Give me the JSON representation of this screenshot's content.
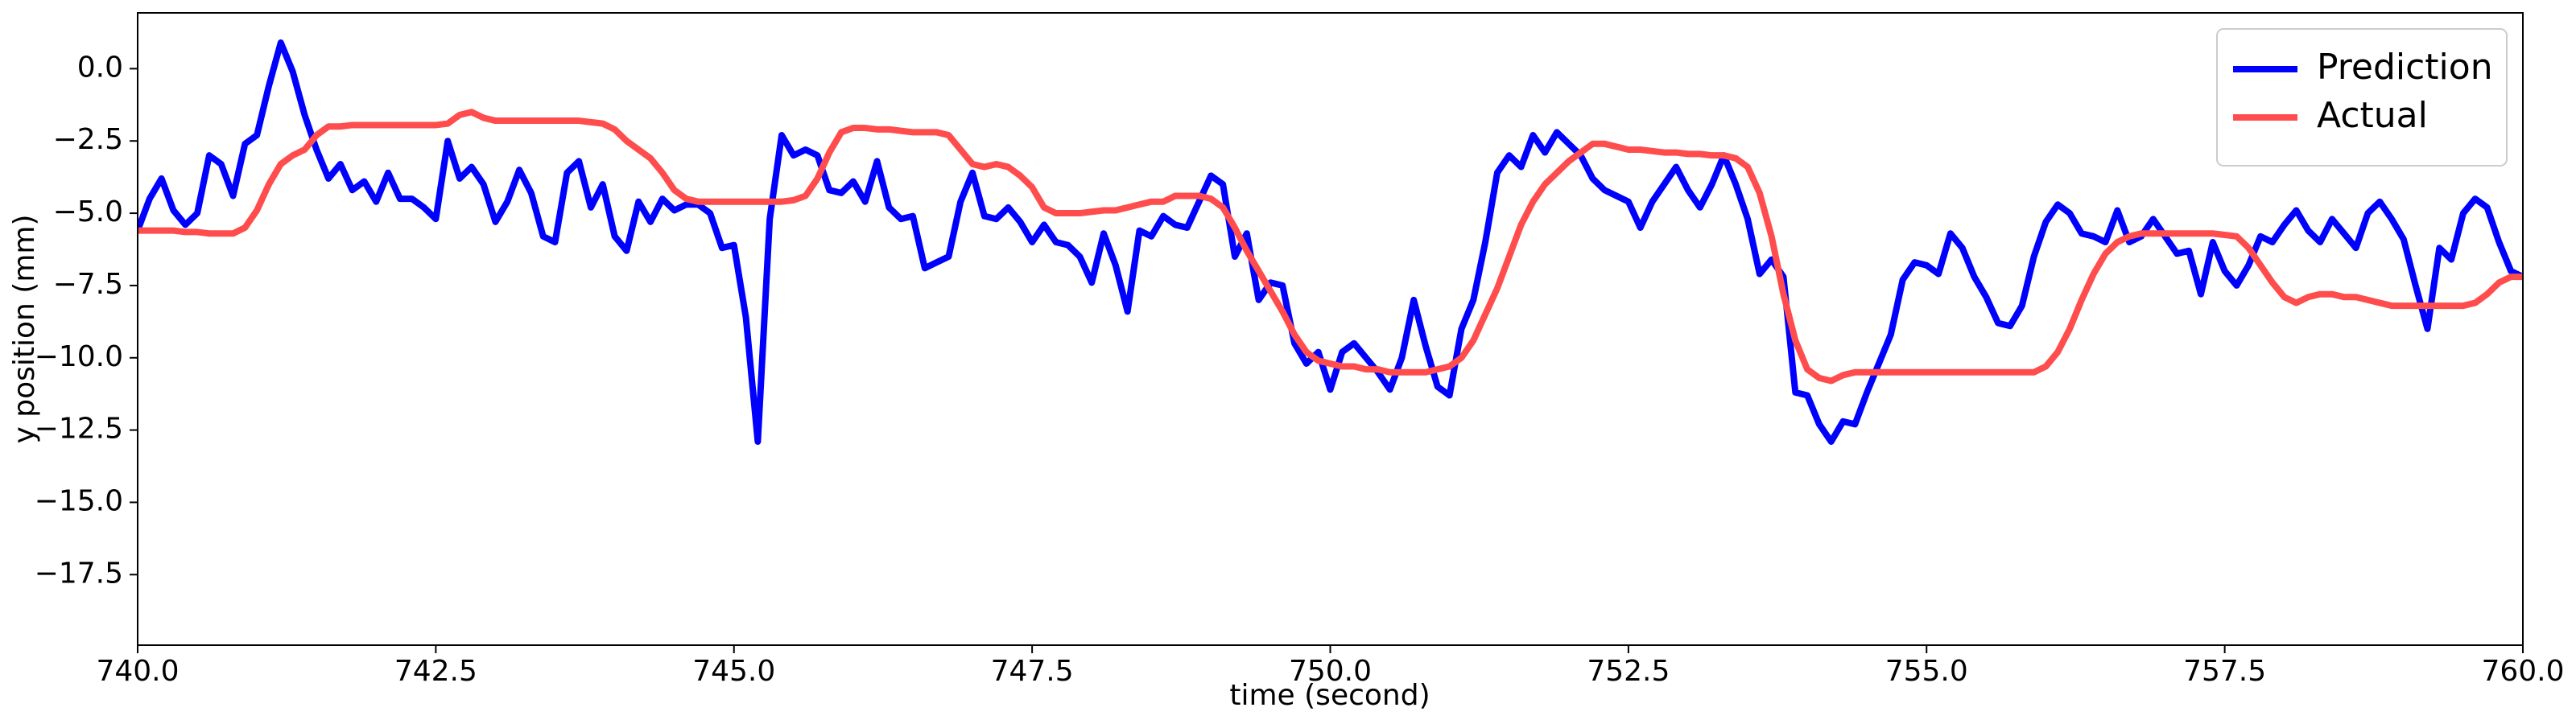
{
  "chart_data": {
    "type": "line",
    "xlabel": "time (second)",
    "ylabel": "y position (mm)",
    "xlim": [
      740,
      760
    ],
    "ylim": [
      -19.94,
      1.93
    ],
    "xticks": [
      {
        "value": 740,
        "label": "740.0"
      },
      742.5,
      {
        "value": 745,
        "label": "745.0"
      },
      747.5,
      {
        "value": 750,
        "label": "750.0"
      },
      752.5,
      {
        "value": 755,
        "label": "755.0"
      },
      757.5,
      {
        "value": 760,
        "label": "760.0"
      }
    ],
    "yticks": [
      {
        "value": 0,
        "label": "0.0"
      },
      {
        "value": -2.5,
        "label": "−2.5"
      },
      {
        "value": -5,
        "label": "−5.0"
      },
      {
        "value": -7.5,
        "label": "−7.5"
      },
      {
        "value": -10,
        "label": "−10.0"
      },
      {
        "value": -12.5,
        "label": "−12.5"
      },
      {
        "value": -15,
        "label": "−15.0"
      },
      {
        "value": -17.5,
        "label": "−17.5"
      }
    ],
    "legend": "upper right",
    "x": [
      740,
      740.1,
      740.2,
      740.3,
      740.4,
      740.5,
      740.6,
      740.7,
      740.8,
      740.9,
      741,
      741.1,
      741.2,
      741.3,
      741.4,
      741.5,
      741.6,
      741.7,
      741.8,
      741.9,
      742,
      742.1,
      742.2,
      742.3,
      742.4,
      742.5,
      742.6,
      742.7,
      742.8,
      742.9,
      743,
      743.1,
      743.2,
      743.3,
      743.4,
      743.5,
      743.6,
      743.7,
      743.8,
      743.9,
      744,
      744.1,
      744.2,
      744.3,
      744.4,
      744.5,
      744.6,
      744.7,
      744.8,
      744.9,
      745,
      745.1,
      745.2,
      745.3,
      745.4,
      745.5,
      745.6,
      745.7,
      745.8,
      745.9,
      746,
      746.1,
      746.2,
      746.3,
      746.4,
      746.5,
      746.6,
      746.7,
      746.8,
      746.9,
      747,
      747.1,
      747.2,
      747.3,
      747.4,
      747.5,
      747.6,
      747.7,
      747.8,
      747.9,
      748,
      748.1,
      748.2,
      748.3,
      748.4,
      748.5,
      748.6,
      748.7,
      748.8,
      748.9,
      749,
      749.1,
      749.2,
      749.3,
      749.4,
      749.5,
      749.6,
      749.7,
      749.8,
      749.9,
      750,
      750.1,
      750.2,
      750.3,
      750.4,
      750.5,
      750.6,
      750.7,
      750.8,
      750.9,
      751,
      751.1,
      751.2,
      751.3,
      751.4,
      751.5,
      751.6,
      751.7,
      751.8,
      751.9,
      752,
      752.1,
      752.2,
      752.3,
      752.4,
      752.5,
      752.6,
      752.7,
      752.8,
      752.9,
      753,
      753.1,
      753.2,
      753.3,
      753.4,
      753.5,
      753.6,
      753.7,
      753.8,
      753.9,
      754,
      754.1,
      754.2,
      754.3,
      754.4,
      754.5,
      754.6,
      754.7,
      754.8,
      754.9,
      755,
      755.1,
      755.2,
      755.3,
      755.4,
      755.5,
      755.6,
      755.7,
      755.8,
      755.9,
      756,
      756.1,
      756.2,
      756.3,
      756.4,
      756.5,
      756.6,
      756.7,
      756.8,
      756.9,
      757,
      757.1,
      757.2,
      757.3,
      757.4,
      757.5,
      757.6,
      757.7,
      757.8,
      757.9,
      758,
      758.1,
      758.2,
      758.3,
      758.4,
      758.5,
      758.6,
      758.7,
      758.8,
      758.9,
      759,
      759.1,
      759.2,
      759.3,
      759.4,
      759.5,
      759.6,
      759.7,
      759.8,
      759.9,
      760
    ],
    "series": [
      {
        "name": "Prediction",
        "color": "#0000ff",
        "values": [
          -5.6,
          -4.5,
          -3.8,
          -4.9,
          -5.4,
          -5.0,
          -3.0,
          -3.3,
          -4.4,
          -2.6,
          -2.3,
          -0.6,
          0.9,
          -0.1,
          -1.6,
          -2.8,
          -3.8,
          -3.3,
          -4.2,
          -3.9,
          -4.6,
          -3.6,
          -4.5,
          -4.5,
          -4.8,
          -5.2,
          -2.5,
          -3.8,
          -3.4,
          -4.0,
          -5.3,
          -4.6,
          -3.5,
          -4.3,
          -5.8,
          -6.0,
          -3.6,
          -3.2,
          -4.8,
          -4.0,
          -5.8,
          -6.3,
          -4.6,
          -5.3,
          -4.5,
          -4.9,
          -4.7,
          -4.7,
          -5.0,
          -6.2,
          -6.1,
          -8.6,
          -12.9,
          -5.2,
          -2.3,
          -3.0,
          -2.8,
          -3.0,
          -4.2,
          -4.3,
          -3.9,
          -4.6,
          -3.2,
          -4.8,
          -5.2,
          -5.1,
          -6.9,
          -6.7,
          -6.5,
          -4.6,
          -3.6,
          -5.1,
          -5.2,
          -4.8,
          -5.3,
          -6.0,
          -5.4,
          -6.0,
          -6.1,
          -6.5,
          -7.4,
          -5.7,
          -6.8,
          -8.4,
          -5.6,
          -5.8,
          -5.1,
          -5.4,
          -5.5,
          -4.6,
          -3.7,
          -4.0,
          -6.5,
          -5.7,
          -8.0,
          -7.4,
          -7.5,
          -9.5,
          -10.2,
          -9.8,
          -11.1,
          -9.8,
          -9.5,
          -10.0,
          -10.5,
          -11.1,
          -10.0,
          -8.0,
          -9.6,
          -11.0,
          -11.3,
          -9.0,
          -8.0,
          -6.0,
          -3.6,
          -3.0,
          -3.4,
          -2.3,
          -2.9,
          -2.2,
          -2.6,
          -3.0,
          -3.8,
          -4.2,
          -4.4,
          -4.6,
          -5.5,
          -4.6,
          -4.0,
          -3.4,
          -4.2,
          -4.8,
          -4.0,
          -3.0,
          -4.0,
          -5.2,
          -7.1,
          -6.6,
          -7.2,
          -11.2,
          -11.3,
          -12.3,
          -12.9,
          -12.2,
          -12.3,
          -11.2,
          -10.2,
          -9.2,
          -7.3,
          -6.7,
          -6.8,
          -7.1,
          -5.7,
          -6.2,
          -7.2,
          -7.9,
          -8.8,
          -8.9,
          -8.2,
          -6.5,
          -5.3,
          -4.7,
          -5.0,
          -5.7,
          -5.8,
          -6.0,
          -4.9,
          -6.0,
          -5.8,
          -5.2,
          -5.8,
          -6.4,
          -6.3,
          -7.8,
          -6.0,
          -7.0,
          -7.5,
          -6.8,
          -5.8,
          -6.0,
          -5.4,
          -4.9,
          -5.6,
          -6.0,
          -5.2,
          -5.7,
          -6.2,
          -5.0,
          -4.6,
          -5.2,
          -5.9,
          -7.5,
          -9.0,
          -6.2,
          -6.6,
          -5.0,
          -4.5,
          -4.8,
          -6.0,
          -7.0,
          -7.2
        ]
      },
      {
        "name": "Actual",
        "color": "#ff4d4d",
        "values": [
          -5.6,
          -5.6,
          -5.6,
          -5.6,
          -5.65,
          -5.65,
          -5.7,
          -5.7,
          -5.7,
          -5.5,
          -4.9,
          -4.0,
          -3.3,
          -3.0,
          -2.8,
          -2.3,
          -2.0,
          -2.0,
          -1.95,
          -1.95,
          -1.95,
          -1.95,
          -1.95,
          -1.95,
          -1.95,
          -1.95,
          -1.9,
          -1.6,
          -1.5,
          -1.7,
          -1.8,
          -1.8,
          -1.8,
          -1.8,
          -1.8,
          -1.8,
          -1.8,
          -1.8,
          -1.85,
          -1.9,
          -2.1,
          -2.5,
          -2.8,
          -3.1,
          -3.6,
          -4.2,
          -4.5,
          -4.6,
          -4.6,
          -4.6,
          -4.6,
          -4.6,
          -4.6,
          -4.6,
          -4.6,
          -4.55,
          -4.4,
          -3.8,
          -2.9,
          -2.2,
          -2.05,
          -2.05,
          -2.1,
          -2.1,
          -2.15,
          -2.2,
          -2.2,
          -2.2,
          -2.3,
          -2.8,
          -3.3,
          -3.4,
          -3.3,
          -3.4,
          -3.7,
          -4.1,
          -4.8,
          -5.0,
          -5.0,
          -5.0,
          -4.95,
          -4.9,
          -4.9,
          -4.8,
          -4.7,
          -4.6,
          -4.6,
          -4.4,
          -4.4,
          -4.4,
          -4.5,
          -4.8,
          -5.5,
          -6.3,
          -7.0,
          -7.7,
          -8.4,
          -9.2,
          -9.8,
          -10.1,
          -10.2,
          -10.3,
          -10.3,
          -10.4,
          -10.4,
          -10.5,
          -10.5,
          -10.5,
          -10.5,
          -10.4,
          -10.3,
          -10.0,
          -9.4,
          -8.5,
          -7.6,
          -6.5,
          -5.4,
          -4.6,
          -4.0,
          -3.6,
          -3.2,
          -2.9,
          -2.6,
          -2.6,
          -2.7,
          -2.8,
          -2.8,
          -2.85,
          -2.9,
          -2.9,
          -2.95,
          -2.95,
          -3.0,
          -3.0,
          -3.1,
          -3.4,
          -4.3,
          -5.8,
          -7.8,
          -9.4,
          -10.4,
          -10.7,
          -10.8,
          -10.6,
          -10.5,
          -10.5,
          -10.5,
          -10.5,
          -10.5,
          -10.5,
          -10.5,
          -10.5,
          -10.5,
          -10.5,
          -10.5,
          -10.5,
          -10.5,
          -10.5,
          -10.5,
          -10.5,
          -10.3,
          -9.8,
          -9.0,
          -8.0,
          -7.1,
          -6.4,
          -6.0,
          -5.8,
          -5.7,
          -5.7,
          -5.7,
          -5.7,
          -5.7,
          -5.7,
          -5.7,
          -5.75,
          -5.8,
          -6.2,
          -6.8,
          -7.4,
          -7.9,
          -8.1,
          -7.9,
          -7.8,
          -7.8,
          -7.9,
          -7.9,
          -8.0,
          -8.1,
          -8.2,
          -8.2,
          -8.2,
          -8.2,
          -8.2,
          -8.2,
          -8.2,
          -8.1,
          -7.8,
          -7.4,
          -7.2,
          -7.2
        ]
      }
    ]
  }
}
